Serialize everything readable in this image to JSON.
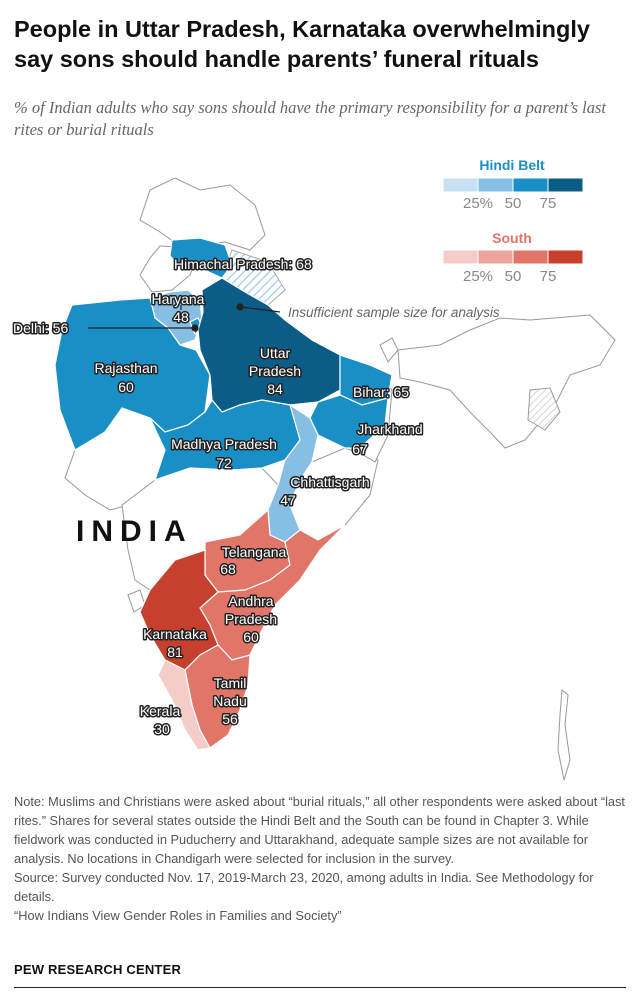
{
  "title": "People in Uttar Pradesh, Karnataka overwhelmingly say sons should handle parents’ funeral rituals",
  "subtitle": "% of Indian adults who say sons should have the primary responsibility for a parent’s last rites or burial rituals",
  "country_label": "INDIA",
  "annotation": "Insufficient sample size for analysis",
  "legends": {
    "hindi_belt": {
      "title": "Hindi Belt",
      "ticks": [
        "25%",
        "50",
        "75"
      ],
      "colors": [
        "#c8e1f2",
        "#86bfe3",
        "#1a8fc6",
        "#0b5c86"
      ]
    },
    "south": {
      "title": "South",
      "ticks": [
        "25%",
        "50",
        "75"
      ],
      "colors": [
        "#f5cdc8",
        "#eca59c",
        "#e07568",
        "#c7402e"
      ]
    }
  },
  "colors": {
    "hindi_high": "#0b5c86",
    "hindi_mid": "#1a8fc6",
    "hindi_low": "#86bfe3",
    "south_high": "#c7402e",
    "south_mid": "#e07568",
    "south_low": "#f5cdc8",
    "other": "#ffffff",
    "border": "#888888"
  },
  "states": [
    {
      "name": "Himachal Pradesh",
      "value": 68,
      "region": "Hindi Belt",
      "label": "Himachal Pradesh: 68"
    },
    {
      "name": "Haryana",
      "value": 48,
      "region": "Hindi Belt",
      "label": "Haryana",
      "value_label": "48"
    },
    {
      "name": "Delhi",
      "value": 56,
      "region": "Hindi Belt",
      "label": "Delhi: 56"
    },
    {
      "name": "Uttar Pradesh",
      "value": 84,
      "region": "Hindi Belt",
      "label": "Uttar",
      "label2": "Pradesh",
      "value_label": "84"
    },
    {
      "name": "Rajasthan",
      "value": 60,
      "region": "Hindi Belt",
      "label": "Rajasthan",
      "value_label": "60"
    },
    {
      "name": "Bihar",
      "value": 65,
      "region": "Hindi Belt",
      "label": "Bihar: 65"
    },
    {
      "name": "Jharkhand",
      "value": 67,
      "region": "Hindi Belt",
      "label": "Jharkhand",
      "value_label": "67"
    },
    {
      "name": "Madhya Pradesh",
      "value": 72,
      "region": "Hindi Belt",
      "label": "Madhya Pradesh",
      "value_label": "72"
    },
    {
      "name": "Chhattisgarh",
      "value": 47,
      "region": "Hindi Belt",
      "label": "Chhattisgarh",
      "value_label": "47"
    },
    {
      "name": "Telangana",
      "value": 68,
      "region": "South",
      "label": "Telangana",
      "value_label": "68"
    },
    {
      "name": "Andhra Pradesh",
      "value": 60,
      "region": "South",
      "label": "Andhra",
      "label2": "Pradesh",
      "value_label": "60"
    },
    {
      "name": "Karnataka",
      "value": 81,
      "region": "South",
      "label": "Karnataka",
      "value_label": "81"
    },
    {
      "name": "Tamil Nadu",
      "value": 56,
      "region": "South",
      "label": "Tamil",
      "label2": "Nadu",
      "value_label": "56"
    },
    {
      "name": "Kerala",
      "value": 30,
      "region": "South",
      "label": "Kerala",
      "value_label": "30"
    }
  ],
  "notes": {
    "note": "Note: Muslims and Christians were asked about “burial rituals,” all other respondents were asked about “last rites.” Shares for several states outside the Hindi Belt and the South can be found in Chapter 3. While fieldwork was conducted in Puducherry and Uttarakhand, adequate sample sizes are not available for analysis. No locations in Chandigarh were selected for inclusion in the survey.",
    "source": "Source: Survey conducted Nov. 17, 2019-March 23, 2020, among adults in India. See Methodology for details.",
    "report": "“How Indians View Gender Roles in Families and Society”"
  },
  "brand": "PEW RESEARCH CENTER"
}
